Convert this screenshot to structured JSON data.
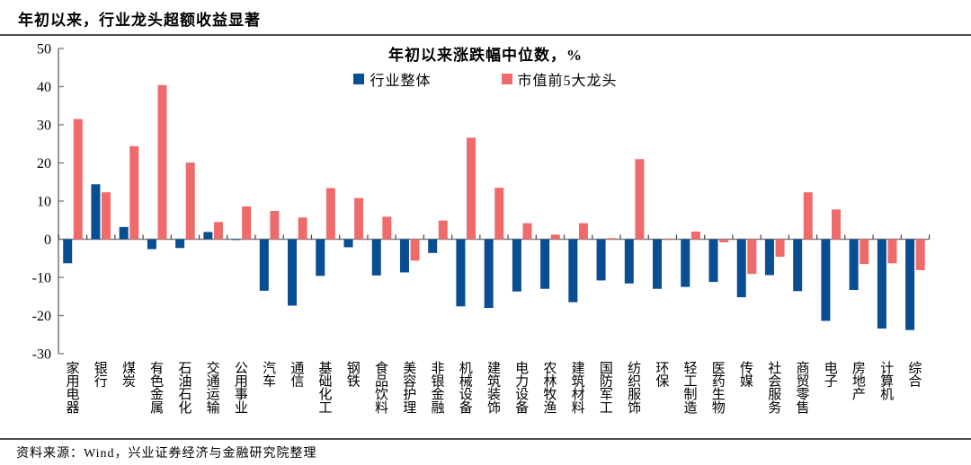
{
  "page": {
    "title": "年初以来，行业龙头超额收益显著",
    "source": "资料来源：Wind，兴业证券经济与金融研究院整理"
  },
  "chart_data": {
    "type": "bar",
    "title": "年初以来涨跌幅中位数，%",
    "categories": [
      "家用电器",
      "银行",
      "煤炭",
      "有色金属",
      "石油石化",
      "交通运输",
      "公用事业",
      "汽车",
      "通信",
      "基础化工",
      "钢铁",
      "食品饮料",
      "美容护理",
      "非银金融",
      "机械设备",
      "建筑装饰",
      "电力设备",
      "农林牧渔",
      "建筑材料",
      "国防军工",
      "纺织服饰",
      "环保",
      "轻工制造",
      "医药生物",
      "传媒",
      "社会服务",
      "商贸零售",
      "电子",
      "房地产",
      "计算机",
      "综合"
    ],
    "series": [
      {
        "name": "行业整体",
        "color": "#094D92",
        "values": [
          -6.3,
          14.4,
          3.2,
          -2.6,
          -2.3,
          1.9,
          -0.2,
          -13.5,
          -17.4,
          -9.6,
          -2.1,
          -9.5,
          -8.7,
          -3.6,
          -17.6,
          -18.0,
          -13.7,
          -13.0,
          -16.5,
          -10.8,
          -11.6,
          -13.0,
          -12.5,
          -11.2,
          -15.2,
          -9.4,
          -13.6,
          -21.4,
          -13.3,
          -23.4,
          -23.8
        ]
      },
      {
        "name": "市值前5大龙头",
        "color": "#EE6A6B",
        "values": [
          31.5,
          12.3,
          24.4,
          40.4,
          20.1,
          4.5,
          8.6,
          7.4,
          5.7,
          13.4,
          10.8,
          5.9,
          -5.6,
          4.9,
          26.6,
          13.5,
          4.2,
          1.2,
          4.2,
          0.3,
          21.0,
          -0.2,
          2.0,
          -0.8,
          -9.1,
          -4.6,
          12.3,
          7.8,
          -6.5,
          -6.3,
          -8.1
        ]
      }
    ],
    "ylim": [
      -30,
      50
    ],
    "yticks": [
      50,
      40,
      30,
      20,
      10,
      0,
      -10,
      -20,
      -30
    ],
    "grid": false,
    "legend_position": "top-center",
    "axis_color": "#7F7F7F"
  }
}
